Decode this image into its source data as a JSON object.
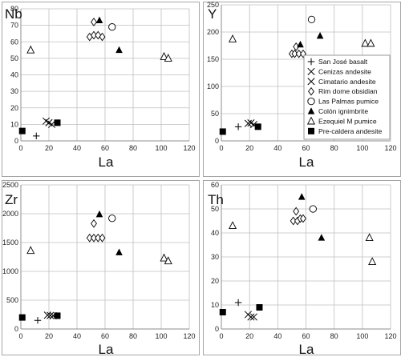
{
  "chart_data": [
    {
      "type": "scatter",
      "title": "Nb",
      "xlabel": "La",
      "ylabel": "",
      "xlim": [
        0,
        120
      ],
      "ylim": [
        0,
        80
      ],
      "xticks": [
        0,
        20,
        40,
        60,
        80,
        100,
        120
      ],
      "yticks": [
        0,
        10,
        20,
        30,
        40,
        50,
        60,
        70,
        80
      ],
      "grid": true,
      "series": [
        {
          "name": "San José basalt",
          "marker": "plus",
          "points": [
            [
              11,
              3
            ]
          ]
        },
        {
          "name": "Cenizas andesite",
          "marker": "x",
          "points": [
            [
              18,
              12
            ],
            [
              20,
              11
            ]
          ]
        },
        {
          "name": "Cimatario andesite",
          "marker": "x",
          "points": [
            [
              22,
              10
            ]
          ]
        },
        {
          "name": "Rim dome obsidian",
          "marker": "diamond",
          "points": [
            [
              49,
              63
            ],
            [
              52,
              72
            ],
            [
              52,
              64
            ],
            [
              55,
              64
            ],
            [
              58,
              63
            ]
          ]
        },
        {
          "name": "Las Palmas pumice",
          "marker": "circle",
          "points": [
            [
              65,
              69
            ]
          ]
        },
        {
          "name": "Colón ignimbrite",
          "marker": "triangle-filled",
          "points": [
            [
              56,
              73
            ],
            [
              70,
              55
            ]
          ]
        },
        {
          "name": "Ezequiel M pumice",
          "marker": "triangle-open",
          "points": [
            [
              7,
              55
            ],
            [
              102,
              51
            ],
            [
              105,
              50
            ]
          ]
        },
        {
          "name": "Pre-caldera andesite",
          "marker": "square-filled",
          "points": [
            [
              1,
              6
            ],
            [
              26,
              11
            ]
          ]
        }
      ]
    },
    {
      "type": "scatter",
      "title": "Y",
      "xlabel": "La",
      "ylabel": "",
      "xlim": [
        0,
        120
      ],
      "ylim": [
        0,
        250
      ],
      "xticks": [
        0,
        20,
        40,
        60,
        80,
        100,
        120
      ],
      "yticks": [
        0,
        50,
        100,
        150,
        200,
        250
      ],
      "grid": true,
      "legend_position": "right",
      "series": [
        {
          "name": "San José basalt",
          "marker": "plus",
          "points": [
            [
              12,
              26
            ]
          ]
        },
        {
          "name": "Cenizas andesite",
          "marker": "x",
          "points": [
            [
              19,
              32
            ],
            [
              21,
              33
            ]
          ]
        },
        {
          "name": "Cimatario andesite",
          "marker": "x",
          "points": [
            [
              23,
              30
            ]
          ]
        },
        {
          "name": "Rim dome obsidian",
          "marker": "diamond",
          "points": [
            [
              50,
              160
            ],
            [
              52,
              160
            ],
            [
              53,
              173
            ],
            [
              55,
              160
            ],
            [
              58,
              160
            ]
          ]
        },
        {
          "name": "Las Palmas pumice",
          "marker": "circle",
          "points": [
            [
              64,
              223
            ]
          ]
        },
        {
          "name": "Colón ignimbrite",
          "marker": "triangle-filled",
          "points": [
            [
              56,
              177
            ],
            [
              70,
              193
            ]
          ]
        },
        {
          "name": "Ezequiel M pumice",
          "marker": "triangle-open",
          "points": [
            [
              8,
              187
            ],
            [
              102,
              179
            ],
            [
              106,
              179
            ]
          ]
        },
        {
          "name": "Pre-caldera andesite",
          "marker": "square-filled",
          "points": [
            [
              1,
              17
            ],
            [
              26,
              26
            ]
          ]
        }
      ]
    },
    {
      "type": "scatter",
      "title": "Zr",
      "xlabel": "La",
      "ylabel": "",
      "xlim": [
        0,
        120
      ],
      "ylim": [
        0,
        2500
      ],
      "xticks": [
        0,
        20,
        40,
        60,
        80,
        100,
        120
      ],
      "yticks": [
        0,
        500,
        1000,
        1500,
        2000,
        2500
      ],
      "grid": true,
      "series": [
        {
          "name": "San José basalt",
          "marker": "plus",
          "points": [
            [
              12,
              150
            ]
          ]
        },
        {
          "name": "Cenizas andesite",
          "marker": "x",
          "points": [
            [
              19,
              240
            ],
            [
              21,
              235
            ]
          ]
        },
        {
          "name": "Cimatario andesite",
          "marker": "x",
          "points": [
            [
              23,
              230
            ]
          ]
        },
        {
          "name": "Rim dome obsidian",
          "marker": "diamond",
          "points": [
            [
              49,
              1580
            ],
            [
              52,
              1830
            ],
            [
              52,
              1580
            ],
            [
              55,
              1580
            ],
            [
              58,
              1580
            ]
          ]
        },
        {
          "name": "Las Palmas pumice",
          "marker": "circle",
          "points": [
            [
              65,
              1920
            ]
          ]
        },
        {
          "name": "Colón ignimbrite",
          "marker": "triangle-filled",
          "points": [
            [
              56,
              1990
            ],
            [
              70,
              1330
            ]
          ]
        },
        {
          "name": "Ezequiel M pumice",
          "marker": "triangle-open",
          "points": [
            [
              7,
              1360
            ],
            [
              102,
              1230
            ],
            [
              105,
              1180
            ]
          ]
        },
        {
          "name": "Pre-caldera andesite",
          "marker": "square-filled",
          "points": [
            [
              1,
              200
            ],
            [
              26,
              230
            ]
          ]
        }
      ]
    },
    {
      "type": "scatter",
      "title": "Th",
      "xlabel": "La",
      "ylabel": "",
      "xlim": [
        0,
        120
      ],
      "ylim": [
        0,
        60
      ],
      "xticks": [
        0,
        20,
        40,
        60,
        80,
        100,
        120
      ],
      "yticks": [
        0,
        10,
        20,
        30,
        40,
        50,
        60
      ],
      "grid": true,
      "series": [
        {
          "name": "San José basalt",
          "marker": "plus",
          "points": [
            [
              12,
              11
            ]
          ]
        },
        {
          "name": "Cenizas andesite",
          "marker": "x",
          "points": [
            [
              19,
              6
            ],
            [
              21,
              5
            ]
          ]
        },
        {
          "name": "Cimatario andesite",
          "marker": "x",
          "points": [
            [
              23,
              5
            ]
          ]
        },
        {
          "name": "Rim dome obsidian",
          "marker": "diamond",
          "points": [
            [
              51,
              45
            ],
            [
              53,
              49
            ],
            [
              54,
              45
            ],
            [
              56,
              46
            ],
            [
              58,
              46
            ]
          ]
        },
        {
          "name": "Las Palmas pumice",
          "marker": "circle",
          "points": [
            [
              65,
              50
            ]
          ]
        },
        {
          "name": "Colón ignimbrite",
          "marker": "triangle-filled",
          "points": [
            [
              57,
              55
            ],
            [
              71,
              38
            ]
          ]
        },
        {
          "name": "Ezequiel M pumice",
          "marker": "triangle-open",
          "points": [
            [
              8,
              43
            ],
            [
              105,
              38
            ],
            [
              107,
              28
            ]
          ]
        },
        {
          "name": "Pre-caldera andesite",
          "marker": "square-filled",
          "points": [
            [
              1,
              7
            ],
            [
              27,
              9
            ]
          ]
        }
      ]
    }
  ],
  "legend": [
    {
      "label": "San José basalt",
      "marker": "plus"
    },
    {
      "label": "Cenizas andesite",
      "marker": "x"
    },
    {
      "label": "Cimatario andesite",
      "marker": "x"
    },
    {
      "label": "Rim dome obsidian",
      "marker": "diamond"
    },
    {
      "label": "Las Palmas pumice",
      "marker": "circle"
    },
    {
      "label": "Colón ignimbrite",
      "marker": "triangle-filled"
    },
    {
      "label": "Ezequiel M pumice",
      "marker": "triangle-open"
    },
    {
      "label": "Pre-caldera andesite",
      "marker": "square-filled"
    }
  ],
  "colors": {
    "grid": "#bfbfbf",
    "axis": "#8c8c8c",
    "frame": "#a6a6a6",
    "marker": "#000000",
    "background": "#ffffff"
  }
}
